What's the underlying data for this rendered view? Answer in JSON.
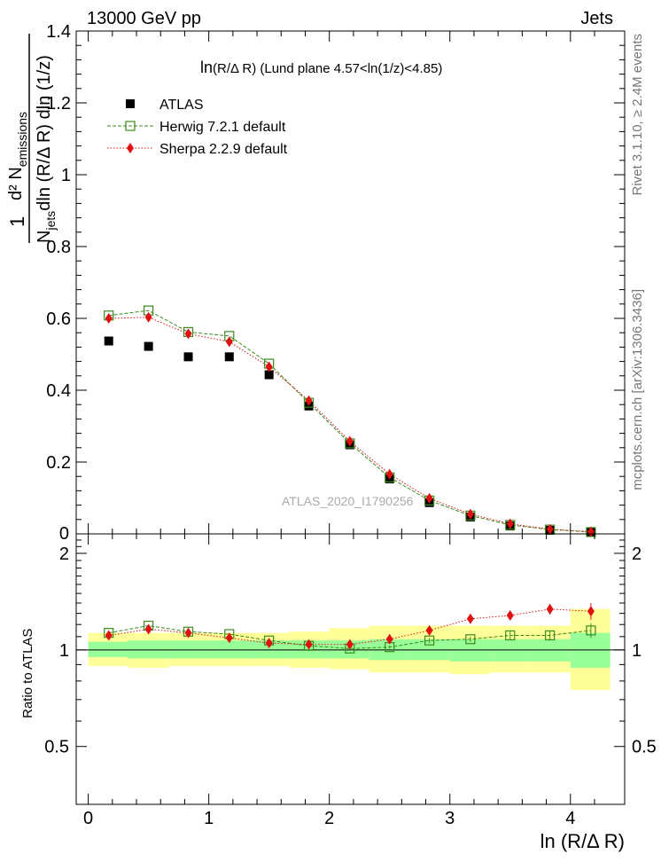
{
  "header": {
    "left": "13000 GeV pp",
    "right": "Jets",
    "analysis_label": "ATLAS_2020_I1790256"
  },
  "side_text": {
    "rivet": "Rivet 3.1.10, ≥ 2.4M events",
    "mcplots": "mcplots.cern.ch [arXiv:1306.3436]"
  },
  "chart_data": [
    {
      "type": "scatter",
      "title": "ln(R/Δ R) (Lund plane 4.57<ln(1/z)<4.85)",
      "title_main": "ln",
      "title_rest": "(R/Δ R) (Lund plane 4.57<ln(1/z)<4.85)",
      "ylabel": {
        "numerator": "d² N",
        "numerator_sub": "emissions",
        "denominator_pre": "N",
        "denominator_sub": "jets",
        "denominator_post": "dln (R/Δ R) dln (1/z)",
        "one": "1"
      },
      "xlim": [
        -0.1,
        4.45
      ],
      "ylim": [
        0,
        1.4
      ],
      "yticks": [
        0.2,
        0.4,
        0.6,
        0.8,
        1,
        1.2,
        1.4
      ],
      "ytick_labels": [
        "0.2",
        "0.4",
        "0.6",
        "0.8",
        "1",
        "1.2",
        "1.4"
      ],
      "y_zero_label": "0",
      "legend_position": "top-left",
      "x": [
        0.17,
        0.5,
        0.83,
        1.17,
        1.5,
        1.83,
        2.17,
        2.5,
        2.83,
        3.17,
        3.5,
        3.83,
        4.17
      ],
      "series": [
        {
          "name": "ATLAS",
          "color": "#000000",
          "marker": "filled-square",
          "values": [
            0.537,
            0.522,
            0.493,
            0.493,
            0.443,
            0.356,
            0.248,
            0.153,
            0.087,
            0.047,
            0.022,
            0.01,
            0.004
          ]
        },
        {
          "name": "Herwig 7.2.1 default",
          "color": "#3a8a1c",
          "marker": "open-square",
          "line": "dashed",
          "values": [
            0.608,
            0.622,
            0.562,
            0.551,
            0.474,
            0.365,
            0.252,
            0.157,
            0.093,
            0.051,
            0.025,
            0.012,
            0.005
          ]
        },
        {
          "name": "Sherpa 2.2.9 default",
          "color": "#e01010",
          "marker": "diamond",
          "line": "dotted",
          "values": [
            0.6,
            0.603,
            0.557,
            0.535,
            0.465,
            0.371,
            0.258,
            0.166,
            0.099,
            0.055,
            0.028,
            0.013,
            0.006
          ]
        }
      ]
    },
    {
      "type": "scatter",
      "ylabel": "Ratio to ATLAS",
      "xlabel": "ln (R/Δ R)",
      "xlim": [
        -0.1,
        4.45
      ],
      "ylim": [
        0.33,
        2.3
      ],
      "yticks": [
        0.5,
        1,
        2
      ],
      "ytick_labels": [
        "0.5",
        "1",
        "2"
      ],
      "xticks": [
        0,
        1,
        2,
        3,
        4
      ],
      "xtick_labels": [
        "0",
        "1",
        "2",
        "3",
        "4"
      ],
      "x": [
        0.17,
        0.5,
        0.83,
        1.17,
        1.5,
        1.83,
        2.17,
        2.5,
        2.83,
        3.17,
        3.5,
        3.83,
        4.17
      ],
      "bin_edges": [
        0,
        0.33,
        0.67,
        1.0,
        1.33,
        1.67,
        2.0,
        2.33,
        2.67,
        3.0,
        3.33,
        3.67,
        4.0,
        4.33
      ],
      "bands": {
        "yellow": {
          "color": "#ffff99",
          "low": [
            0.89,
            0.88,
            0.89,
            0.89,
            0.89,
            0.88,
            0.87,
            0.85,
            0.85,
            0.84,
            0.85,
            0.85,
            0.75
          ],
          "high": [
            1.13,
            1.13,
            1.13,
            1.13,
            1.13,
            1.14,
            1.17,
            1.19,
            1.19,
            1.19,
            1.19,
            1.19,
            1.34
          ]
        },
        "green": {
          "color": "#99ff99",
          "low": [
            0.95,
            0.94,
            0.94,
            0.94,
            0.94,
            0.94,
            0.94,
            0.93,
            0.93,
            0.92,
            0.92,
            0.92,
            0.88
          ],
          "high": [
            1.06,
            1.07,
            1.07,
            1.07,
            1.07,
            1.07,
            1.07,
            1.08,
            1.08,
            1.08,
            1.08,
            1.08,
            1.13
          ]
        }
      },
      "series": [
        {
          "name": "Herwig 7.2.1 default",
          "color": "#3a8a1c",
          "marker": "open-square",
          "line": "dashed",
          "values": [
            1.13,
            1.19,
            1.14,
            1.12,
            1.07,
            1.03,
            1.01,
            1.02,
            1.07,
            1.08,
            1.11,
            1.11,
            1.15
          ],
          "errors": [
            0.01,
            0.01,
            0.01,
            0.01,
            0.01,
            0.01,
            0.01,
            0.01,
            0.02,
            0.02,
            0.03,
            0.04,
            0.06
          ]
        },
        {
          "name": "Sherpa 2.2.9 default",
          "color": "#e01010",
          "marker": "diamond",
          "line": "dotted",
          "values": [
            1.11,
            1.16,
            1.13,
            1.09,
            1.05,
            1.04,
            1.04,
            1.08,
            1.15,
            1.25,
            1.28,
            1.34,
            1.32
          ],
          "errors": [
            0.01,
            0.01,
            0.01,
            0.01,
            0.01,
            0.01,
            0.01,
            0.02,
            0.02,
            0.03,
            0.03,
            0.05,
            0.08
          ]
        }
      ]
    }
  ]
}
